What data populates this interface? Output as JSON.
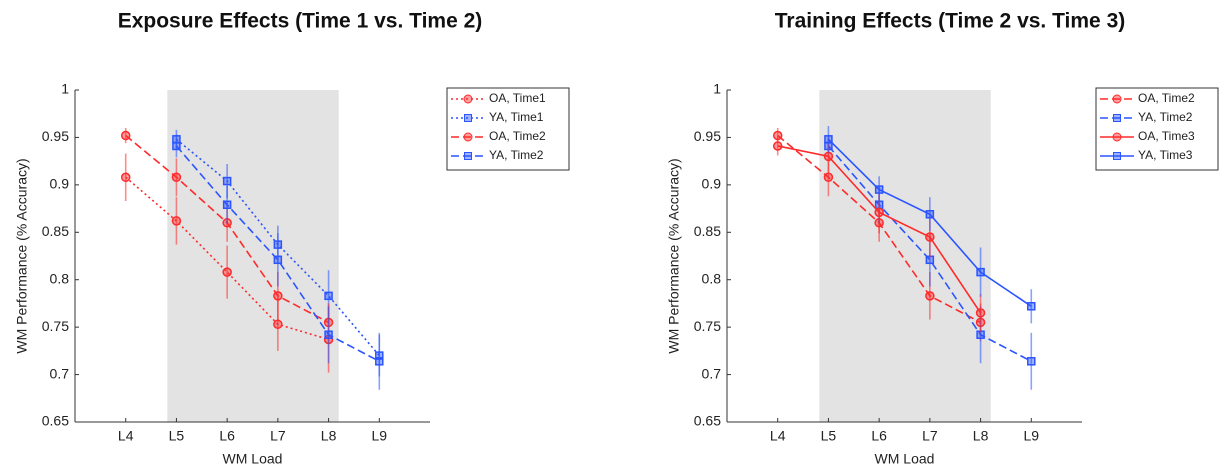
{
  "chart_data": [
    {
      "type": "line",
      "title": "Exposure Effects (Time 1 vs. Time 2)",
      "x_label": "WM Load",
      "y_label": "WM Performance (% Accuracy)",
      "categories": [
        "L4",
        "L5",
        "L6",
        "L7",
        "L8",
        "L9"
      ],
      "ylim": [
        0.65,
        1
      ],
      "yticks": [
        0.65,
        0.7,
        0.75,
        0.8,
        0.85,
        0.9,
        0.95,
        1
      ],
      "series": [
        {
          "name": "OA, Time1",
          "color": "#ff2a2a",
          "line_style": "dotted",
          "marker": "circle",
          "values": [
            0.908,
            0.862,
            0.808,
            0.753,
            0.737,
            null
          ],
          "errors": [
            0.025,
            0.025,
            0.028,
            0.028,
            0.035,
            null
          ]
        },
        {
          "name": "YA, Time1",
          "color": "#2a55ff",
          "line_style": "dotted",
          "marker": "square",
          "values": [
            null,
            0.948,
            0.904,
            0.837,
            0.783,
            0.72
          ],
          "errors": [
            null,
            0.01,
            0.018,
            0.02,
            0.027,
            0.022
          ]
        },
        {
          "name": "OA, Time2",
          "color": "#ff2a2a",
          "line_style": "dashed",
          "marker": "circle",
          "values": [
            0.952,
            0.908,
            0.86,
            0.783,
            0.755,
            null
          ],
          "errors": [
            0.008,
            0.02,
            0.02,
            0.025,
            0.02,
            null
          ]
        },
        {
          "name": "YA, Time2",
          "color": "#2a55ff",
          "line_style": "dashed",
          "marker": "square",
          "values": [
            null,
            0.941,
            0.879,
            0.821,
            0.742,
            0.714
          ],
          "errors": [
            null,
            0.012,
            0.02,
            0.028,
            0.03,
            0.03
          ]
        }
      ]
    },
    {
      "type": "line",
      "title": "Training Effects (Time 2 vs. Time 3)",
      "x_label": "WM Load",
      "y_label": "WM Performance (% Accuracy)",
      "categories": [
        "L4",
        "L5",
        "L6",
        "L7",
        "L8",
        "L9"
      ],
      "ylim": [
        0.65,
        1
      ],
      "yticks": [
        0.65,
        0.7,
        0.75,
        0.8,
        0.85,
        0.9,
        0.95,
        1
      ],
      "series": [
        {
          "name": "OA, Time2",
          "color": "#ff2a2a",
          "line_style": "dashed",
          "marker": "circle",
          "values": [
            0.952,
            0.908,
            0.86,
            0.783,
            0.755,
            null
          ],
          "errors": [
            0.008,
            0.02,
            0.02,
            0.025,
            0.02,
            null
          ]
        },
        {
          "name": "YA, Time2",
          "color": "#2a55ff",
          "line_style": "dashed",
          "marker": "square",
          "values": [
            null,
            0.941,
            0.879,
            0.821,
            0.742,
            0.714
          ],
          "errors": [
            null,
            0.012,
            0.02,
            0.028,
            0.03,
            0.03
          ]
        },
        {
          "name": "OA, Time3",
          "color": "#ff2a2a",
          "line_style": "solid",
          "marker": "circle",
          "values": [
            0.941,
            0.93,
            0.871,
            0.845,
            0.765,
            null
          ],
          "errors": [
            0.01,
            0.018,
            0.022,
            0.022,
            0.02,
            null
          ]
        },
        {
          "name": "YA, Time3",
          "color": "#2a55ff",
          "line_style": "solid",
          "marker": "square",
          "values": [
            null,
            0.948,
            0.895,
            0.869,
            0.808,
            0.772
          ],
          "errors": [
            null,
            0.014,
            0.014,
            0.018,
            0.026,
            0.018
          ]
        }
      ]
    }
  ]
}
